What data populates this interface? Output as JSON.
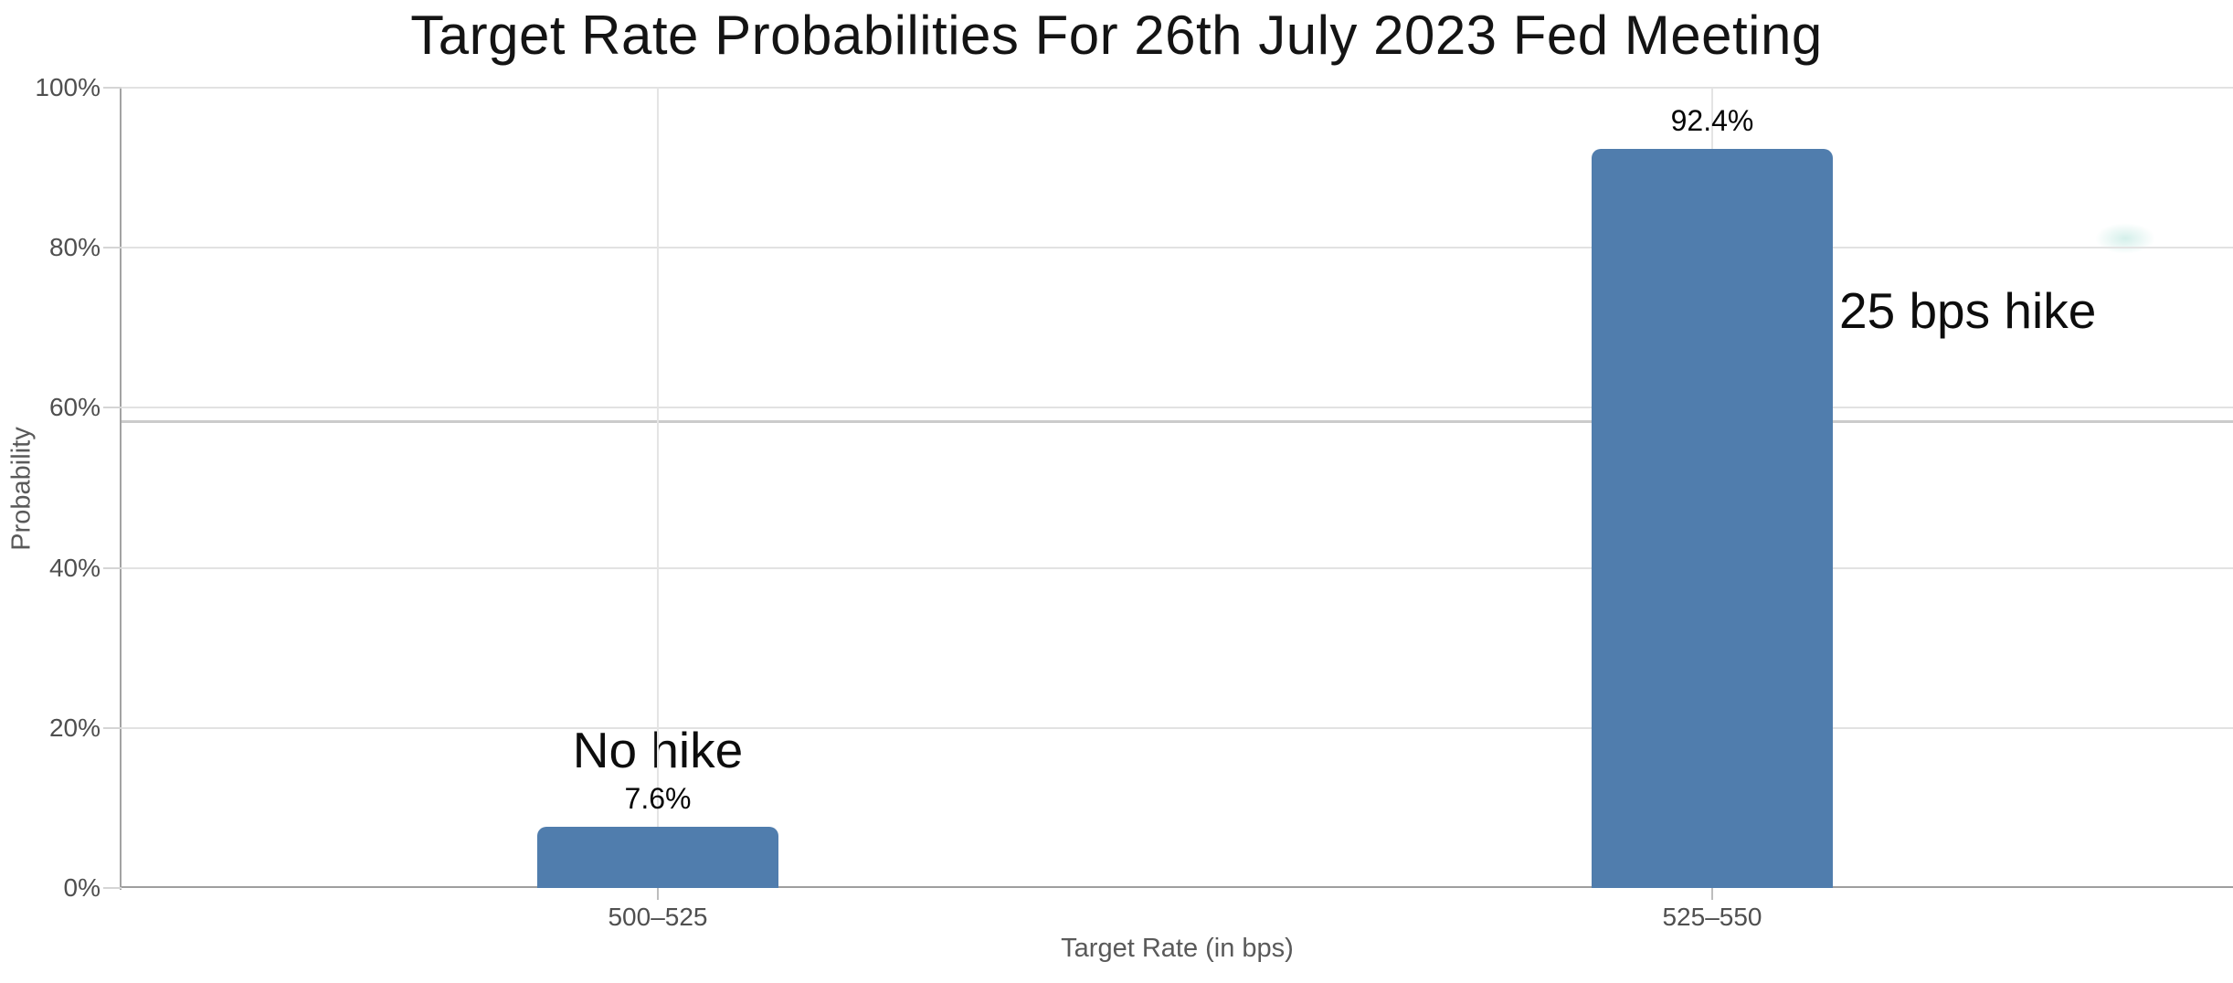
{
  "chart_data": {
    "type": "bar",
    "title": "Target Rate Probabilities For 26th July 2023 Fed Meeting",
    "xlabel": "Target Rate (in bps)",
    "ylabel": "Probability",
    "categories": [
      "500–525",
      "525–550"
    ],
    "values": [
      7.6,
      92.4
    ],
    "value_labels": [
      "7.6%",
      "92.4%"
    ],
    "annotations": [
      {
        "text": "No hike",
        "target": "500–525",
        "position": "above-bar"
      },
      {
        "text": "25 bps hike",
        "target": "525–550",
        "position": "right-of-bar"
      }
    ],
    "y_ticks": [
      "0%",
      "20%",
      "40%",
      "60%",
      "80%",
      "100%"
    ],
    "ylim": [
      0,
      100
    ],
    "grid": {
      "horizontal": true,
      "vertical_at_categories": true
    },
    "legend": "none",
    "colors": {
      "bar": "#507dad",
      "gridline": "#e2e2e2",
      "stray_line": "#cbcbcb",
      "axis_line": "#a3a3a3",
      "tick_label": "#4f4f4f",
      "axis_title": "#595959",
      "title": "#141414",
      "annotation": "#0d0d0d"
    }
  }
}
